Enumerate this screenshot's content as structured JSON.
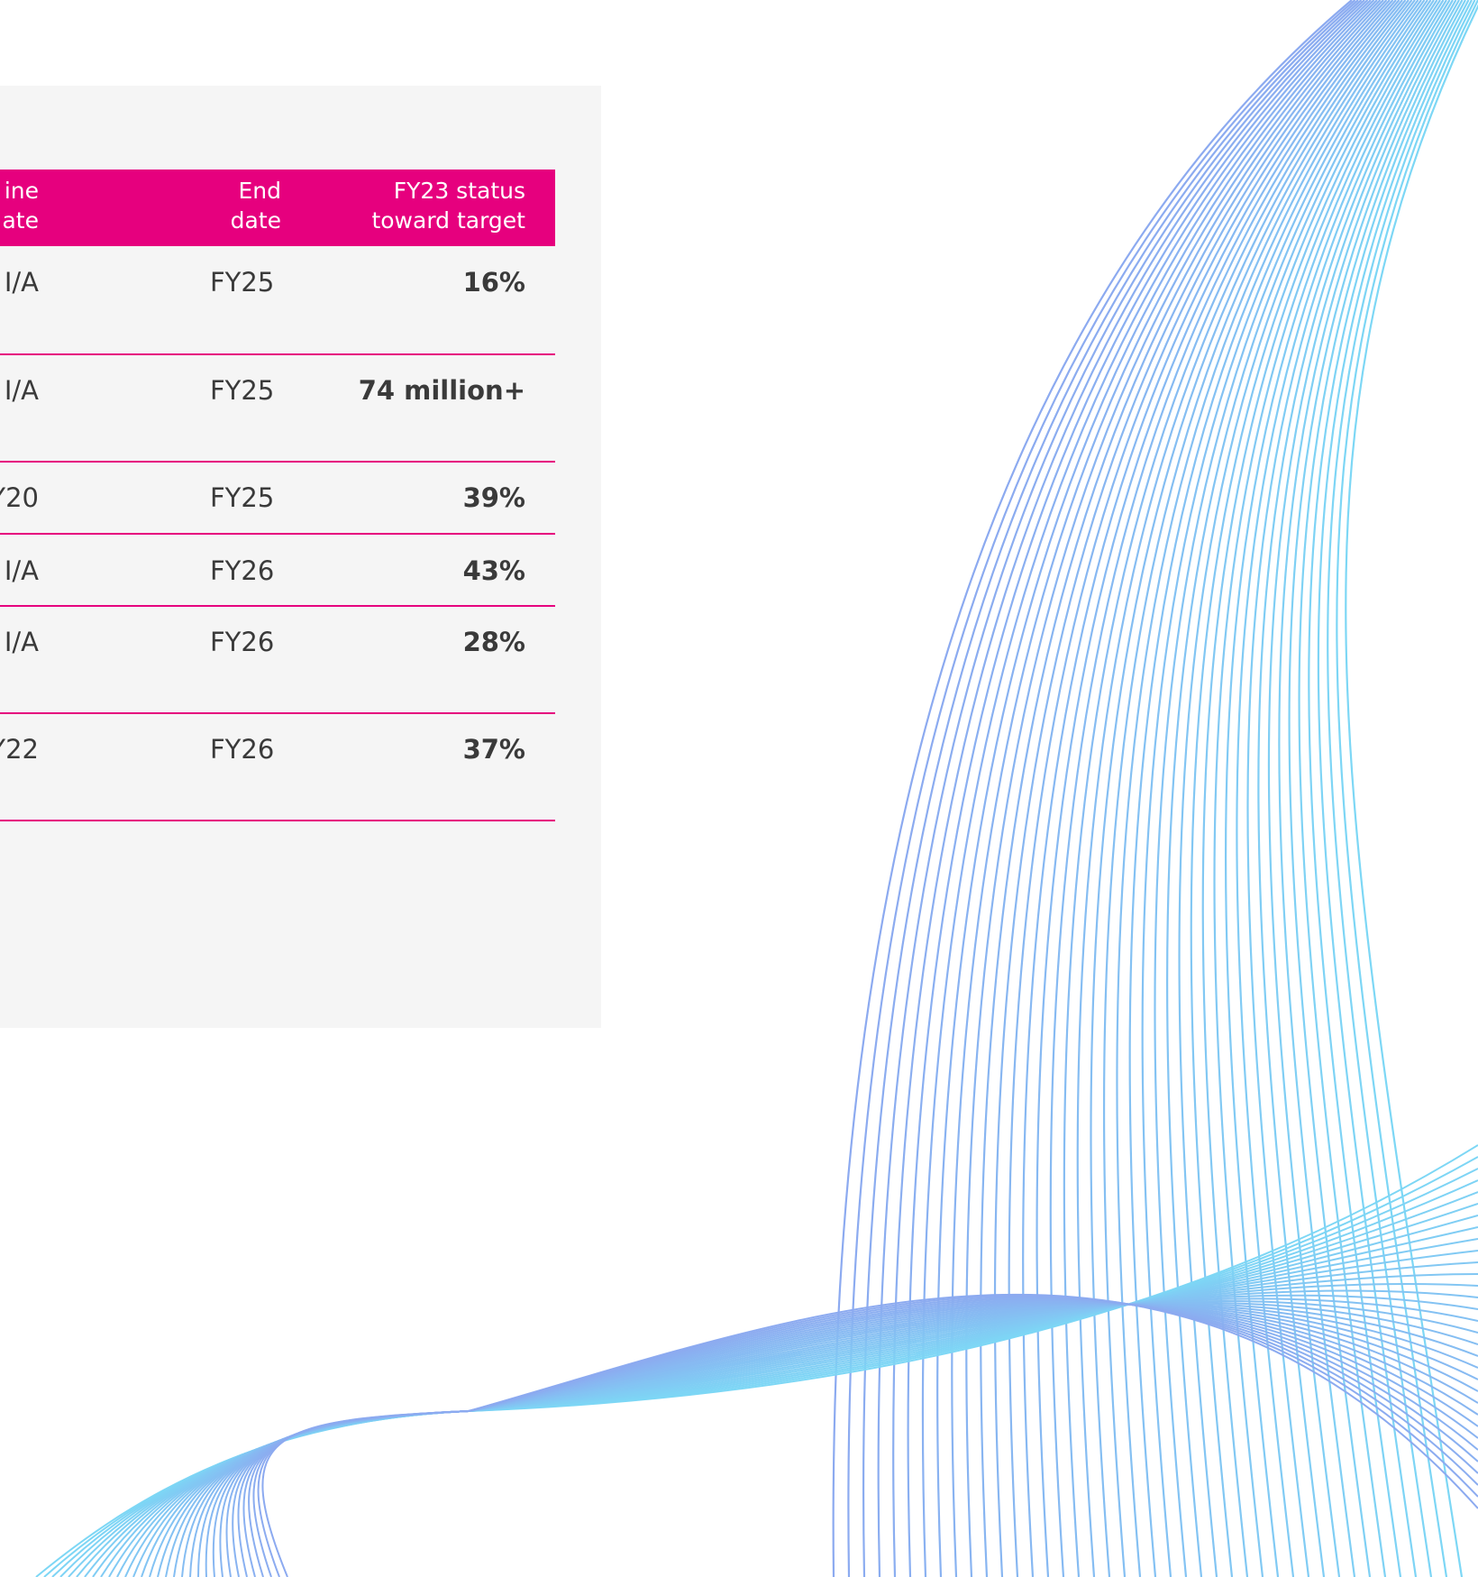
{
  "table": {
    "header": [
      [
        "ine",
        "ate"
      ],
      [
        "End",
        "date"
      ],
      [
        "FY23 status",
        "toward target"
      ]
    ],
    "rows": [
      [
        "I/A",
        "FY25",
        "16%"
      ],
      [
        "I/A",
        "FY25",
        "74 million+"
      ],
      [
        "Y20",
        "FY25",
        "39%"
      ],
      [
        "I/A",
        "FY26",
        "43%"
      ],
      [
        "I/A",
        "FY26",
        "28%"
      ],
      [
        "Y22",
        "FY26",
        "37%"
      ]
    ]
  }
}
